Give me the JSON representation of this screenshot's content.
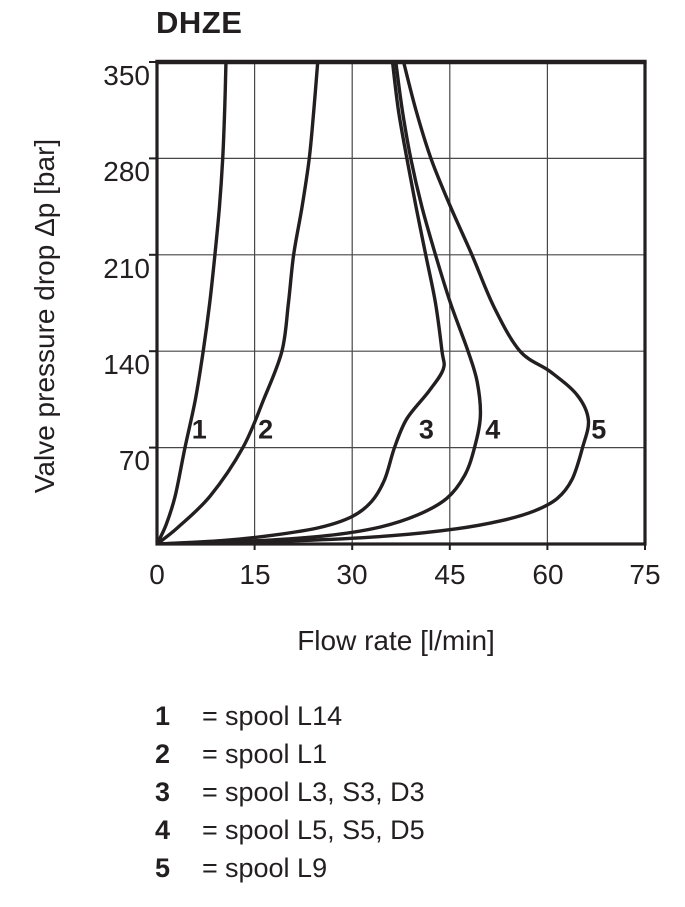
{
  "title": "DHZE",
  "chart_data": {
    "type": "line",
    "title": "DHZE",
    "xlabel": "Flow rate [l/min]",
    "ylabel": "Valve pressure drop Δp [bar]",
    "xlim": [
      0,
      75
    ],
    "ylim": [
      0,
      350
    ],
    "x_ticks": [
      "0",
      "15",
      "30",
      "45",
      "60",
      "75"
    ],
    "y_ticks": [
      "350",
      "280",
      "210",
      "140",
      "70"
    ],
    "grid": true,
    "legend_position": "below",
    "series": [
      {
        "label": "1",
        "name": "spool L14",
        "label_pos": [
          6.5,
          83
        ],
        "points": [
          [
            0,
            0
          ],
          [
            1.4,
            14
          ],
          [
            2.8,
            35
          ],
          [
            4.3,
            70
          ],
          [
            5.9,
            105
          ],
          [
            7.1,
            140
          ],
          [
            8.1,
            175
          ],
          [
            8.9,
            210
          ],
          [
            9.6,
            245
          ],
          [
            10.1,
            280
          ],
          [
            10.4,
            315
          ],
          [
            10.6,
            350
          ]
        ]
      },
      {
        "label": "2",
        "name": "spool L1",
        "label_pos": [
          16.7,
          83
        ],
        "points": [
          [
            0,
            0
          ],
          [
            3.2,
            12
          ],
          [
            8.2,
            35
          ],
          [
            13.2,
            70
          ],
          [
            16.4,
            105
          ],
          [
            19.2,
            140
          ],
          [
            20.2,
            175
          ],
          [
            21.0,
            210
          ],
          [
            22.3,
            245
          ],
          [
            23.4,
            280
          ],
          [
            24.1,
            315
          ],
          [
            24.7,
            350
          ]
        ]
      },
      {
        "label": "3",
        "name": "spool L3, S3, D3",
        "label_pos": [
          41.4,
          83
        ],
        "points": [
          [
            0,
            0
          ],
          [
            10,
            2.5
          ],
          [
            18,
            6.5
          ],
          [
            25,
            12
          ],
          [
            30,
            20
          ],
          [
            33,
            31
          ],
          [
            35,
            47
          ],
          [
            36.5,
            70
          ],
          [
            38.4,
            91
          ],
          [
            41.8,
            111
          ],
          [
            44,
            127
          ],
          [
            43.8,
            140
          ],
          [
            42.8,
            175
          ],
          [
            41.3,
            210
          ],
          [
            39.8,
            245
          ],
          [
            38.4,
            280
          ],
          [
            37.1,
            315
          ],
          [
            36.2,
            350
          ]
        ]
      },
      {
        "label": "4",
        "name": "spool L5, S5, D5",
        "label_pos": [
          51.6,
          83
        ],
        "points": [
          [
            0,
            0
          ],
          [
            16,
            2.5
          ],
          [
            26,
            6
          ],
          [
            34,
            12
          ],
          [
            40,
            21
          ],
          [
            44.5,
            33
          ],
          [
            47.3,
            50
          ],
          [
            48.8,
            70
          ],
          [
            49.7,
            93
          ],
          [
            49.2,
            118
          ],
          [
            47.8,
            140
          ],
          [
            45.1,
            175
          ],
          [
            42.8,
            210
          ],
          [
            40.7,
            245
          ],
          [
            39.0,
            280
          ],
          [
            37.7,
            315
          ],
          [
            36.7,
            350
          ]
        ]
      },
      {
        "label": "5",
        "name": "spool L9",
        "label_pos": [
          67.9,
          83
        ],
        "points": [
          [
            0,
            0
          ],
          [
            22,
            2.5
          ],
          [
            36,
            6
          ],
          [
            46,
            11
          ],
          [
            53,
            17
          ],
          [
            58,
            24
          ],
          [
            61.5,
            33
          ],
          [
            63.8,
            47
          ],
          [
            65.4,
            70
          ],
          [
            66.3,
            90
          ],
          [
            64.6,
            108
          ],
          [
            60.5,
            125
          ],
          [
            55.8,
            140
          ],
          [
            51.8,
            172
          ],
          [
            48.4,
            210
          ],
          [
            45.1,
            245
          ],
          [
            42.1,
            280
          ],
          [
            39.8,
            315
          ],
          [
            37.9,
            350
          ]
        ]
      }
    ]
  },
  "legend": {
    "rows": [
      {
        "num": "1",
        "sep": "=",
        "desc": "spool L14"
      },
      {
        "num": "2",
        "sep": "=",
        "desc": "spool L1"
      },
      {
        "num": "3",
        "sep": "=",
        "desc": "spool L3, S3, D3"
      },
      {
        "num": "4",
        "sep": "=",
        "desc": "spool L5, S5, D5"
      },
      {
        "num": "5",
        "sep": "=",
        "desc": "spool L9"
      }
    ]
  },
  "colors": {
    "ink": "#231f20",
    "grid": "#474747",
    "background": "#ffffff"
  }
}
